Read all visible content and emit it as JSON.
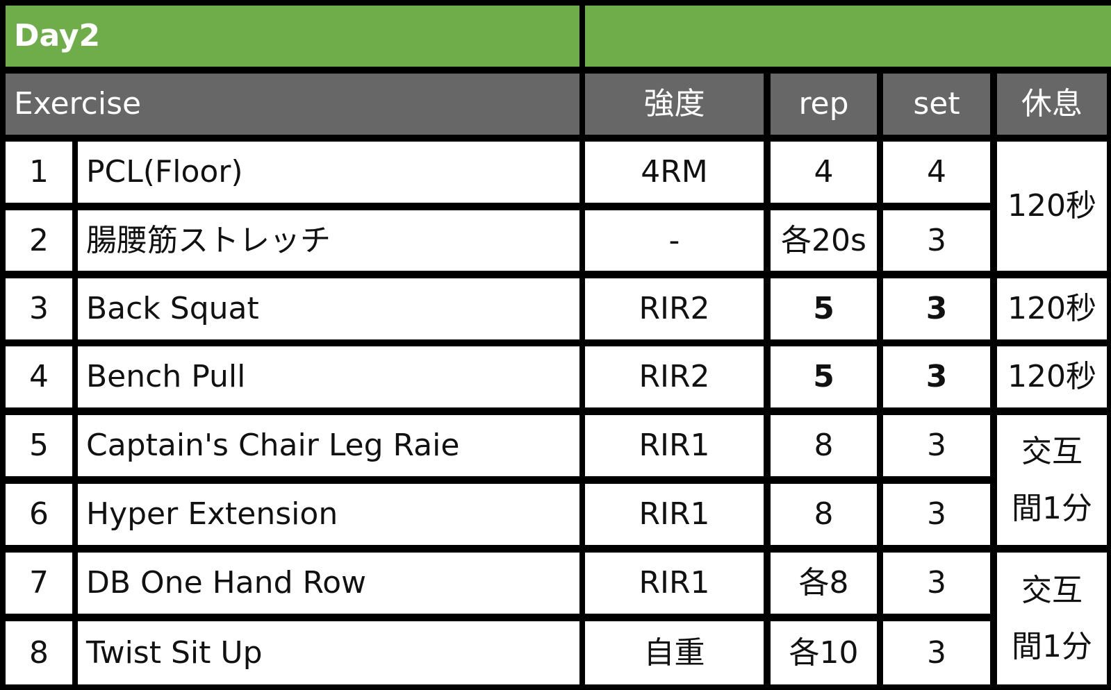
{
  "title": "Day2",
  "headers": {
    "exercise": "Exercise",
    "intensity": "強度",
    "rep": "rep",
    "set": "set",
    "rest": "休息"
  },
  "rows": [
    {
      "no": "1",
      "name": "PCL(Floor)",
      "intensity": "4RM",
      "rep": "4",
      "set": "4"
    },
    {
      "no": "2",
      "name": "腸腰筋ストレッチ",
      "intensity": "-",
      "rep": "各20s",
      "set": "3"
    },
    {
      "no": "3",
      "name": "Back Squat",
      "intensity": "RIR2",
      "rep": "5",
      "set": "3"
    },
    {
      "no": "4",
      "name": "Bench Pull",
      "intensity": "RIR2",
      "rep": "5",
      "set": "3"
    },
    {
      "no": "5",
      "name": "Captain's Chair Leg Raie",
      "intensity": "RIR1",
      "rep": "8",
      "set": "3"
    },
    {
      "no": "6",
      "name": "Hyper Extension",
      "intensity": "RIR1",
      "rep": "8",
      "set": "3"
    },
    {
      "no": "7",
      "name": "DB One Hand Row",
      "intensity": "RIR1",
      "rep": "各8",
      "set": "3"
    },
    {
      "no": "8",
      "name": "Twist Sit Up",
      "intensity": "自重",
      "rep": "各10",
      "set": "3"
    }
  ],
  "rest": {
    "rows_1_2": "120秒",
    "row_3": "120秒",
    "row_4": "120秒",
    "rows_5_6": {
      "line1": "交互",
      "line2": "間1分"
    },
    "rows_7_8": {
      "line1": "交互",
      "line2": "間1分"
    }
  },
  "colors": {
    "title_bar": "#6fad4b",
    "header_bar": "#676767",
    "grid": "#000000"
  }
}
